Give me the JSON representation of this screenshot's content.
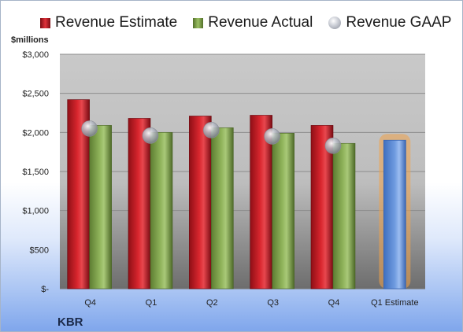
{
  "legend": {
    "estimate": "Revenue Estimate",
    "actual": "Revenue Actual",
    "gaap": "Revenue GAAP"
  },
  "unit_label": "$millions",
  "company": "KBR",
  "colors": {
    "estimate": "#d9262e",
    "actual": "#8fb35a",
    "gaap": "#b8bcc6",
    "forecast": "#6f9be0",
    "forecast_glow": "#f0a24a",
    "plot_background": "#c6c6c6"
  },
  "chart_data": {
    "type": "bar",
    "title": "",
    "xlabel": "",
    "ylabel": "$millions",
    "categories": [
      "Q4",
      "Q1",
      "Q2",
      "Q3",
      "Q4",
      "Q1 Estimate"
    ],
    "ylim": [
      0,
      3000
    ],
    "yticks": [
      0,
      500,
      1000,
      1500,
      2000,
      2500,
      3000
    ],
    "ytick_labels": [
      "$-",
      "$500",
      "$1,000",
      "$1,500",
      "$2,000",
      "$2,500",
      "$3,000"
    ],
    "grid": true,
    "legend_position": "top",
    "series": [
      {
        "name": "Revenue Estimate",
        "values": [
          2420,
          2180,
          2210,
          2220,
          2090,
          null
        ]
      },
      {
        "name": "Revenue Actual",
        "values": [
          2090,
          2000,
          2060,
          1990,
          1860,
          1900
        ]
      },
      {
        "name": "Revenue GAAP",
        "type": "scatter",
        "values": [
          2050,
          1960,
          2030,
          1950,
          1830,
          null
        ]
      }
    ],
    "highlight_category": "Q1 Estimate"
  }
}
